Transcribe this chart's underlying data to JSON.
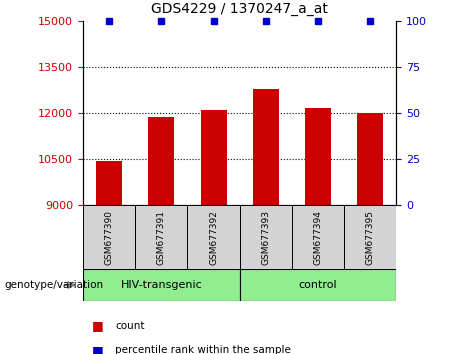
{
  "title": "GDS4229 / 1370247_a_at",
  "samples": [
    "GSM677390",
    "GSM677391",
    "GSM677392",
    "GSM677393",
    "GSM677394",
    "GSM677395"
  ],
  "bar_values": [
    10450,
    11870,
    12100,
    12780,
    12170,
    12020
  ],
  "percentile_values": [
    100,
    100,
    100,
    100,
    100,
    100
  ],
  "bar_color": "#cc0000",
  "percentile_color": "#0000cc",
  "ylim_left": [
    9000,
    15000
  ],
  "ylim_right": [
    0,
    100
  ],
  "yticks_left": [
    9000,
    10500,
    12000,
    13500,
    15000
  ],
  "yticks_right": [
    0,
    25,
    50,
    75,
    100
  ],
  "grid_ticks": [
    10500,
    12000,
    13500
  ],
  "groups": [
    {
      "label": "HIV-transgenic",
      "indices": [
        0,
        1,
        2
      ],
      "color": "#90ee90"
    },
    {
      "label": "control",
      "indices": [
        3,
        4,
        5
      ],
      "color": "#90ee90"
    }
  ],
  "group_label": "genotype/variation",
  "legend_count_label": "count",
  "legend_percentile_label": "percentile rank within the sample",
  "bg_color": "#ffffff",
  "label_area_color": "#d3d3d3",
  "label_area_color2": "#90ee90"
}
